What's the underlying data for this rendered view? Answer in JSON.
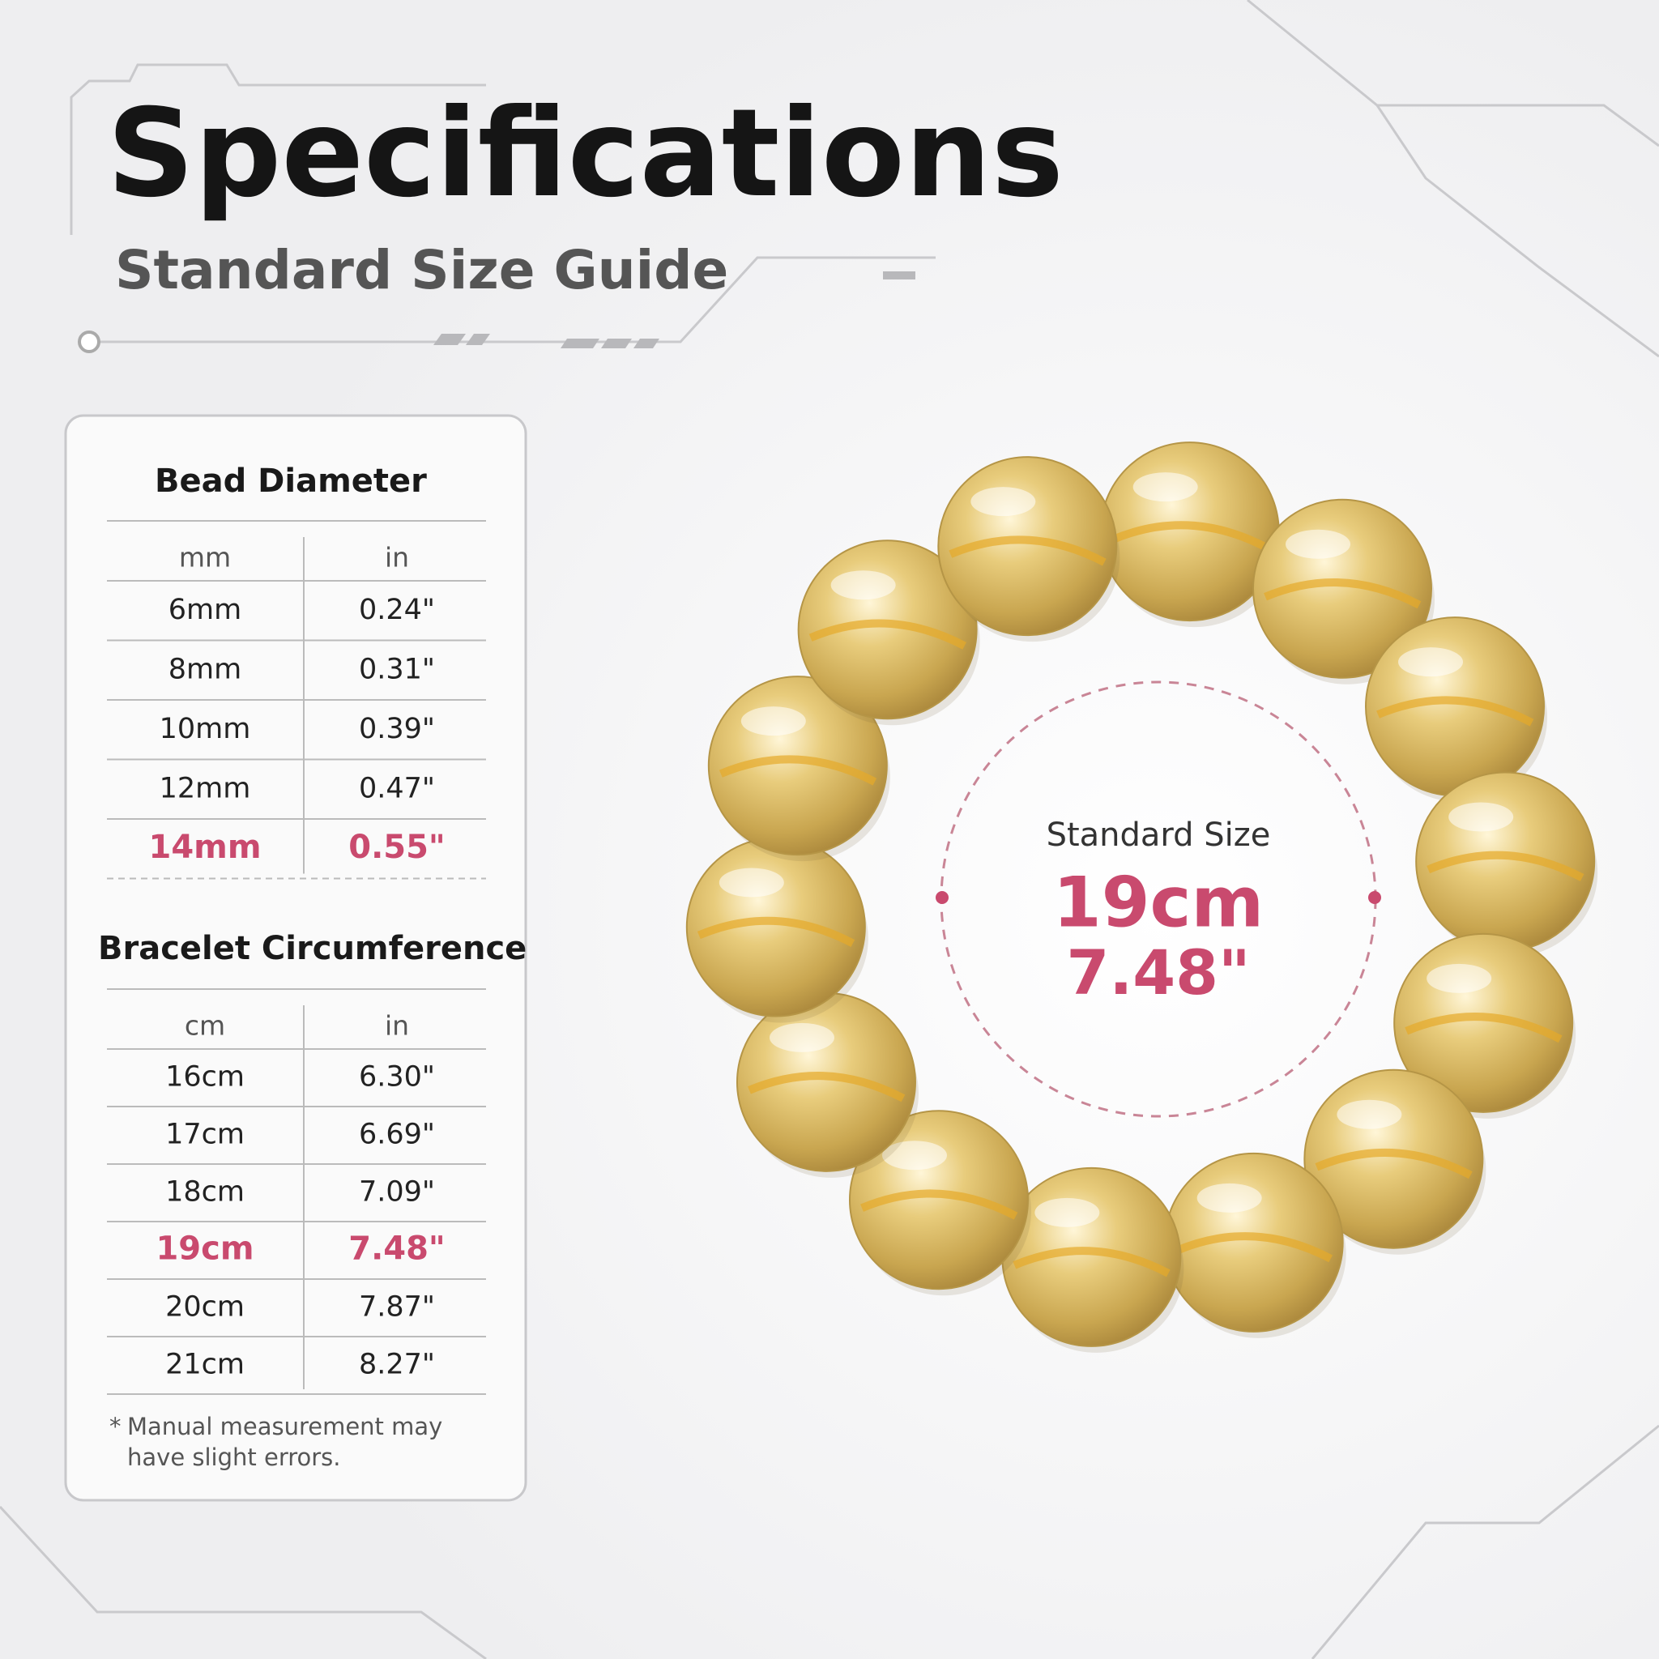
{
  "header": {
    "title": "Specifications",
    "subtitle": "Standard Size Guide"
  },
  "bead_table": {
    "title": "Bead Diameter",
    "columns": [
      "mm",
      "in"
    ],
    "rows": [
      [
        "6mm",
        "0.24\""
      ],
      [
        "8mm",
        "0.31\""
      ],
      [
        "10mm",
        "0.39\""
      ],
      [
        "12mm",
        "0.47\""
      ],
      [
        "14mm",
        "0.55\""
      ]
    ],
    "highlight_row": 4
  },
  "circumference_table": {
    "title": "Bracelet Circumference",
    "columns": [
      "cm",
      "in"
    ],
    "rows": [
      [
        "16cm",
        "6.30\""
      ],
      [
        "17cm",
        "6.69\""
      ],
      [
        "18cm",
        "7.09\""
      ],
      [
        "19cm",
        "7.48\""
      ],
      [
        "20cm",
        "7.87\""
      ],
      [
        "21cm",
        "8.27\""
      ]
    ],
    "highlight_row": 3
  },
  "note": [
    "*",
    "Manual measurement may",
    "have slight errors."
  ],
  "standard": {
    "label": "Standard Size",
    "cm": "19cm",
    "in": "7.48\""
  }
}
